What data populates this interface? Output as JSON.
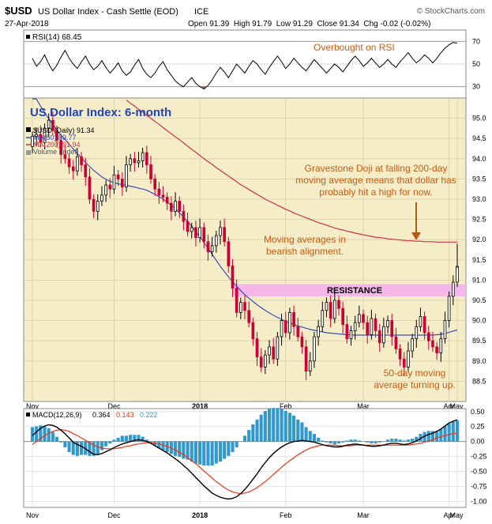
{
  "header": {
    "symbol": "$USD",
    "name": "US Dollar Index - Cash Settle (EOD)",
    "exchange": "ICE",
    "credit": "© StockCharts.com",
    "date": "27-Apr-2018",
    "ohlc_text": "Open 91.39  High 91.79  Low 91.29  Close 91.34  Chg -0.02 (-0.02%)"
  },
  "colors": {
    "price_bg": "#f5ecc8",
    "up": "#000000",
    "down": "#cc0033",
    "ma50": "#3d4db5",
    "ma200": "#cc3344",
    "macd": "#000000",
    "signal": "#ee3311",
    "histogram": "#3399cc",
    "resistance": "#f5b0ec",
    "annotation": "#c85c10",
    "title": "#2244bb"
  },
  "chart_data": [
    {
      "type": "line",
      "panel": "RSI",
      "legend": "RSI(14) 68.45",
      "ylim": [
        20,
        80
      ],
      "yticks": [
        "70",
        "50",
        "30"
      ],
      "reference_lines": [
        70,
        50,
        30
      ],
      "annotation": "Overbought on RSI",
      "values": [
        55,
        48,
        52,
        58,
        50,
        44,
        49,
        56,
        62,
        55,
        50,
        46,
        52,
        57,
        50,
        45,
        48,
        53,
        47,
        42,
        46,
        51,
        44,
        40,
        43,
        49,
        54,
        46,
        41,
        38,
        42,
        48,
        52,
        45,
        40,
        35,
        32,
        30,
        34,
        38,
        33,
        30,
        28,
        31,
        36,
        42,
        47,
        43,
        38,
        44,
        50,
        46,
        42,
        48,
        53,
        50,
        45,
        41,
        47,
        52,
        57,
        52,
        46,
        50,
        55,
        51,
        47,
        44,
        49,
        54,
        50,
        46,
        42,
        46,
        50,
        47,
        43,
        48,
        53,
        57,
        53,
        48,
        51,
        55,
        51,
        47,
        50,
        54,
        50,
        47,
        52,
        56,
        60,
        55,
        51,
        54,
        58,
        55,
        51,
        55,
        60,
        64,
        67,
        69,
        68.45
      ]
    },
    {
      "type": "candlestick",
      "panel": "price",
      "title": "US Dollar Index: 6-month",
      "legend": [
        "$USD (Daily) 91.34",
        "MA(50) 89.77",
        "MA(200) 91.94",
        "Volume undef"
      ],
      "xticks": [
        "Nov",
        "Dec",
        "2018",
        "Feb",
        "Mar",
        "Apr",
        "May"
      ],
      "ylim": [
        88.0,
        95.5
      ],
      "yticks": [
        "95.0",
        "94.5",
        "94.0",
        "93.5",
        "93.0",
        "92.5",
        "92.0",
        "91.5",
        "91.0",
        "90.5",
        "90.0",
        "89.5",
        "89.0",
        "88.5"
      ],
      "close": [
        94.55,
        94.6,
        94.4,
        94.75,
        94.95,
        94.7,
        94.45,
        94.1,
        94.0,
        93.8,
        93.7,
        94.05,
        93.85,
        93.55,
        93.0,
        92.7,
        92.95,
        93.1,
        93.35,
        93.25,
        93.6,
        93.5,
        93.3,
        93.85,
        94.0,
        93.9,
        93.95,
        94.15,
        93.85,
        93.5,
        93.25,
        93.1,
        93.05,
        92.9,
        92.7,
        92.95,
        92.7,
        92.45,
        92.2,
        92.3,
        92.05,
        92.3,
        91.95,
        91.7,
        91.85,
        92.1,
        92.3,
        91.95,
        91.35,
        90.8,
        90.2,
        90.45,
        90.25,
        89.95,
        89.55,
        89.1,
        88.85,
        89.15,
        89.35,
        89.05,
        89.6,
        90.0,
        89.7,
        90.2,
        89.85,
        89.6,
        89.35,
        88.75,
        89.0,
        89.6,
        89.85,
        90.25,
        90.45,
        90.05,
        90.5,
        90.3,
        89.9,
        89.55,
        89.75,
        89.95,
        90.15,
        89.95,
        89.65,
        90.05,
        89.75,
        89.45,
        89.85,
        90.0,
        89.6,
        89.3,
        89.05,
        88.85,
        89.25,
        89.55,
        89.85,
        90.1,
        89.7,
        89.5,
        89.35,
        89.2,
        89.55,
        90.0,
        90.6,
        90.95,
        91.34
      ],
      "ma50": [
        95.7,
        95.47,
        95.3,
        95.14,
        94.99,
        94.85,
        94.71,
        94.58,
        94.47,
        94.36,
        94.24,
        94.13,
        94.02,
        93.91,
        93.81,
        93.71,
        93.63,
        93.55,
        93.49,
        93.44,
        93.41,
        93.38,
        93.36,
        93.34,
        93.32,
        93.3,
        93.27,
        93.25,
        93.22,
        93.17,
        93.12,
        93.06,
        93.0,
        92.93,
        92.85,
        92.76,
        92.66,
        92.56,
        92.45,
        92.33,
        92.2,
        92.07,
        91.93,
        91.79,
        91.64,
        91.49,
        91.34,
        91.21,
        91.08,
        90.96,
        90.85,
        90.74,
        90.64,
        90.55,
        90.47,
        90.39,
        90.32,
        90.25,
        90.19,
        90.13,
        90.08,
        90.03,
        89.98,
        89.94,
        89.9,
        89.87,
        89.84,
        89.81,
        89.78,
        89.76,
        89.74,
        89.72,
        89.7,
        89.69,
        89.68,
        89.67,
        89.66,
        89.65,
        89.65,
        89.64,
        89.64,
        89.64,
        89.64,
        89.64,
        89.64,
        89.64,
        89.64,
        89.64,
        89.64,
        89.64,
        89.64,
        89.64,
        89.64,
        89.64,
        89.64,
        89.64,
        89.64,
        89.64,
        89.64,
        89.65,
        89.66,
        89.68,
        89.71,
        89.74,
        89.77
      ],
      "ma200": [
        null,
        null,
        null,
        null,
        null,
        null,
        null,
        null,
        null,
        null,
        null,
        null,
        null,
        null,
        null,
        null,
        null,
        null,
        null,
        null,
        null,
        null,
        null,
        95.45,
        95.37,
        95.3,
        95.22,
        95.15,
        95.07,
        95.0,
        94.92,
        94.85,
        94.77,
        94.69,
        94.62,
        94.54,
        94.47,
        94.39,
        94.31,
        94.23,
        94.16,
        94.08,
        94.0,
        93.93,
        93.86,
        93.78,
        93.71,
        93.64,
        93.57,
        93.5,
        93.43,
        93.36,
        93.3,
        93.24,
        93.18,
        93.12,
        93.06,
        93.0,
        92.95,
        92.9,
        92.85,
        92.8,
        92.75,
        92.71,
        92.66,
        92.62,
        92.58,
        92.54,
        92.5,
        92.46,
        92.42,
        92.39,
        92.36,
        92.32,
        92.29,
        92.26,
        92.24,
        92.21,
        92.19,
        92.16,
        92.14,
        92.12,
        92.1,
        92.08,
        92.06,
        92.05,
        92.04,
        92.02,
        92.01,
        92.0,
        91.99,
        91.98,
        91.97,
        91.97,
        91.96,
        91.96,
        91.95,
        91.95,
        91.95,
        91.94,
        91.94,
        91.94,
        91.94,
        91.94,
        91.94
      ],
      "resistance": {
        "label": "RESISTANCE",
        "low": 90.6,
        "high": 90.9
      },
      "annotations": [
        "Gravestone Doji at falling 200-day moving average means that dollar has probably hit a high for now.",
        "Moving averages in bearish alignment.",
        "50-day moving average turning up."
      ]
    },
    {
      "type": "line",
      "panel": "MACD",
      "legend": {
        "label": "MACD(12,26,9)",
        "macd": "0.364",
        "signal": "0.143",
        "hist": "0.222"
      },
      "xticks": [
        "Nov",
        "Dec",
        "2018",
        "Feb",
        "Mar",
        "Apr",
        "May"
      ],
      "ylim": [
        -1.1,
        0.55
      ],
      "yticks": [
        "0.50",
        "0.25",
        "0.00",
        "-0.25",
        "-0.50",
        "-0.75",
        "-1.00"
      ],
      "macd": [
        0.1,
        0.16,
        0.22,
        0.26,
        0.28,
        0.27,
        0.24,
        0.19,
        0.13,
        0.06,
        -0.01,
        -0.05,
        -0.08,
        -0.12,
        -0.17,
        -0.21,
        -0.22,
        -0.2,
        -0.17,
        -0.14,
        -0.1,
        -0.07,
        -0.04,
        -0.02,
        0.0,
        0.02,
        0.03,
        0.02,
        0.0,
        -0.03,
        -0.07,
        -0.11,
        -0.15,
        -0.19,
        -0.24,
        -0.29,
        -0.34,
        -0.4,
        -0.46,
        -0.53,
        -0.6,
        -0.67,
        -0.74,
        -0.8,
        -0.86,
        -0.9,
        -0.93,
        -0.95,
        -0.96,
        -0.95,
        -0.92,
        -0.87,
        -0.8,
        -0.72,
        -0.63,
        -0.54,
        -0.44,
        -0.35,
        -0.27,
        -0.2,
        -0.14,
        -0.09,
        -0.05,
        -0.02,
        0.0,
        0.01,
        0.02,
        0.01,
        0.0,
        -0.01,
        -0.03,
        -0.05,
        -0.07,
        -0.08,
        -0.09,
        -0.09,
        -0.08,
        -0.06,
        -0.05,
        -0.04,
        -0.05,
        -0.06,
        -0.07,
        -0.08,
        -0.08,
        -0.07,
        -0.06,
        -0.04,
        -0.03,
        -0.03,
        -0.04,
        -0.05,
        -0.04,
        -0.02,
        0.01,
        0.05,
        0.09,
        0.12,
        0.14,
        0.17,
        0.21,
        0.26,
        0.31,
        0.34,
        0.364
      ],
      "signal": [
        -0.05,
        0.0,
        0.05,
        0.1,
        0.14,
        0.17,
        0.19,
        0.2,
        0.19,
        0.17,
        0.13,
        0.1,
        0.06,
        0.02,
        -0.02,
        -0.06,
        -0.09,
        -0.11,
        -0.12,
        -0.12,
        -0.12,
        -0.11,
        -0.1,
        -0.08,
        -0.07,
        -0.05,
        -0.04,
        -0.03,
        -0.02,
        -0.02,
        -0.03,
        -0.04,
        -0.06,
        -0.08,
        -0.11,
        -0.14,
        -0.18,
        -0.22,
        -0.27,
        -0.32,
        -0.37,
        -0.43,
        -0.49,
        -0.55,
        -0.61,
        -0.67,
        -0.72,
        -0.77,
        -0.81,
        -0.84,
        -0.86,
        -0.87,
        -0.86,
        -0.84,
        -0.81,
        -0.77,
        -0.72,
        -0.67,
        -0.61,
        -0.55,
        -0.49,
        -0.43,
        -0.37,
        -0.32,
        -0.27,
        -0.22,
        -0.18,
        -0.14,
        -0.11,
        -0.09,
        -0.07,
        -0.06,
        -0.06,
        -0.06,
        -0.06,
        -0.07,
        -0.07,
        -0.07,
        -0.07,
        -0.06,
        -0.06,
        -0.06,
        -0.06,
        -0.06,
        -0.06,
        -0.06,
        -0.06,
        -0.06,
        -0.06,
        -0.06,
        -0.06,
        -0.06,
        -0.06,
        -0.05,
        -0.04,
        -0.03,
        -0.01,
        0.01,
        0.03,
        0.06,
        0.08,
        0.1,
        0.12,
        0.13,
        0.143
      ]
    }
  ]
}
